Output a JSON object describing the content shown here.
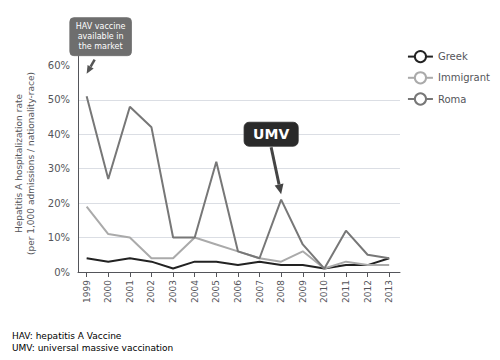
{
  "chart_data": {
    "type": "line",
    "x": [
      1999,
      2000,
      2001,
      2002,
      2003,
      2004,
      2005,
      2006,
      2007,
      2008,
      2009,
      2010,
      2011,
      2012,
      2013
    ],
    "series": [
      {
        "name": "Greek",
        "color": "#222222",
        "values": [
          4,
          3,
          4,
          3,
          1,
          3,
          3,
          2,
          3,
          2,
          2,
          1,
          2,
          2,
          4
        ]
      },
      {
        "name": "Immigrant",
        "color": "#aaaaaa",
        "values": [
          19,
          11,
          10,
          4,
          4,
          10,
          8,
          6,
          4,
          3,
          6,
          1,
          3,
          2,
          2
        ]
      },
      {
        "name": "Roma",
        "color": "#777777",
        "values": [
          51,
          27,
          48,
          42,
          10,
          10,
          32,
          6,
          4,
          21,
          8,
          1,
          12,
          5,
          4
        ]
      }
    ],
    "xlim": [
      1998.6,
      2013.5
    ],
    "xticks": [
      1999,
      2000,
      2001,
      2002,
      2003,
      2004,
      2005,
      2006,
      2007,
      2008,
      2009,
      2010,
      2011,
      2012,
      2013
    ],
    "ylim": [
      0,
      63
    ],
    "yticks": [
      {
        "value": 0,
        "label": "0%"
      },
      {
        "value": 10,
        "label": "10%"
      },
      {
        "value": 20,
        "label": "20%"
      },
      {
        "value": 30,
        "label": "30%"
      },
      {
        "value": 40,
        "label": "40%"
      },
      {
        "value": 50,
        "label": "50%"
      },
      {
        "value": 60,
        "label": "60%"
      }
    ],
    "ylabel": "Hepatitis A hospitalization rate\n(per 1,000 admissions / nationality-race)",
    "annotations": [
      {
        "text": "HAV vaccine\navailable in\nthe market",
        "x": 1999,
        "y": 57
      },
      {
        "text": "UMV",
        "x": 2008,
        "y": 22
      }
    ],
    "footnote": "HAV: hepatitis A Vaccine\nUMV: universal massive vaccination",
    "grid": "y",
    "legend": "right"
  }
}
